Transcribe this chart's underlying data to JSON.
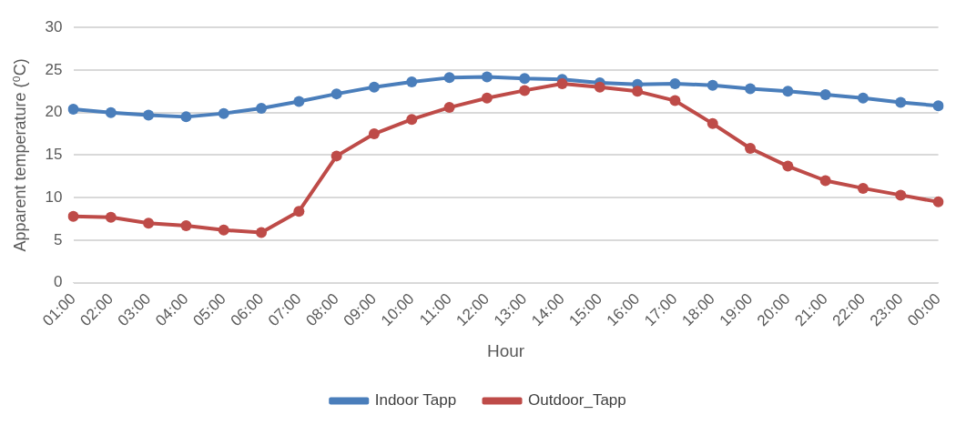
{
  "chart_data": {
    "type": "line",
    "xlabel": "Hour",
    "ylabel": "Apparent temperature (⁰C)",
    "categories": [
      "01:00",
      "02:00",
      "03:00",
      "04:00",
      "05:00",
      "06:00",
      "07:00",
      "08:00",
      "09:00",
      "10:00",
      "11:00",
      "12:00",
      "13:00",
      "14:00",
      "15:00",
      "16:00",
      "17:00",
      "18:00",
      "19:00",
      "20:00",
      "21:00",
      "22:00",
      "23:00",
      "00:00"
    ],
    "series": [
      {
        "name": "Indoor Tapp",
        "color": "#4a7ebb",
        "values": [
          20.4,
          20.0,
          19.7,
          19.5,
          19.9,
          20.5,
          21.3,
          22.2,
          23.0,
          23.6,
          24.1,
          24.2,
          24.0,
          23.9,
          23.5,
          23.3,
          23.4,
          23.2,
          22.8,
          22.5,
          22.1,
          21.7,
          21.2,
          20.8
        ]
      },
      {
        "name": "Outdoor_Tapp",
        "color": "#be4b48",
        "values": [
          7.8,
          7.7,
          7.0,
          6.7,
          6.2,
          5.9,
          8.4,
          14.9,
          17.5,
          19.2,
          20.6,
          21.7,
          22.6,
          23.4,
          23.0,
          22.5,
          21.4,
          18.7,
          15.8,
          13.7,
          12.0,
          11.1,
          10.3,
          9.5
        ]
      }
    ],
    "ylim": [
      0,
      30
    ],
    "yticks": [
      0,
      5,
      10,
      15,
      20,
      25,
      30
    ],
    "grid": "y",
    "legend": "bottom",
    "marker": "circle",
    "line_style": "solid"
  }
}
